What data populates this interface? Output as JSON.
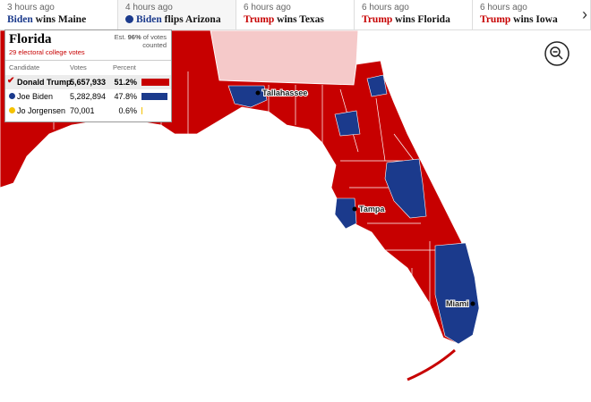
{
  "ticker": [
    {
      "time": "3 hours ago",
      "winner": "Biden",
      "action": "wins Maine",
      "color": "#1b3a8c"
    },
    {
      "time": "4 hours ago",
      "winner": "Biden",
      "action": "flips Arizona",
      "color": "#1b3a8c"
    },
    {
      "time": "6 hours ago",
      "winner": "Trump",
      "action": "wins Texas",
      "color": "#c70000"
    },
    {
      "time": "6 hours ago",
      "winner": "Trump",
      "action": "wins Florida",
      "color": "#c70000"
    },
    {
      "time": "6 hours ago",
      "winner": "Trump",
      "action": "wins Iowa",
      "color": "#c70000"
    }
  ],
  "panel": {
    "state": "Florida",
    "electoral": "29 electoral college votes",
    "est_prefix": "Est.",
    "est_value": "96%",
    "est_suffix": "of votes counted",
    "headers": [
      "Candidate",
      "Votes",
      "Percent"
    ],
    "rows": [
      {
        "name": "Donald Trump",
        "votes": "5,657,933",
        "percent": 51.2,
        "percent_label": "51.2%",
        "color": "#c70000"
      },
      {
        "name": "Joe Biden",
        "votes": "5,282,894",
        "percent": 47.8,
        "percent_label": "47.8%",
        "color": "#1b3a8c"
      },
      {
        "name": "Jo Jorgensen",
        "votes": "70,001",
        "percent": 0.6,
        "percent_label": "0.6%",
        "color": "#f5c200"
      }
    ]
  },
  "cities": [
    "Tallahassee",
    "Tampa",
    "Miami"
  ]
}
